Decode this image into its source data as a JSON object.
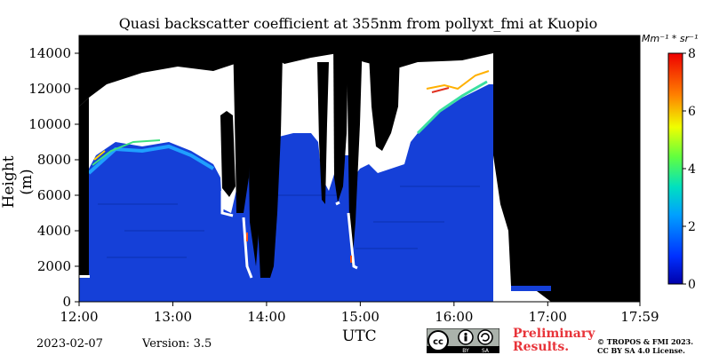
{
  "chart_data": {
    "type": "heatmap",
    "title": "Quasi backscatter coefficient at 355nm from pollyxt_fmi at Kuopio",
    "xlabel": "UTC",
    "ylabel": "Height (m)",
    "x_ticks": [
      "12:00",
      "13:00",
      "14:00",
      "15:00",
      "16:00",
      "17:00",
      "17:59"
    ],
    "xlim": [
      "12:00",
      "17:59"
    ],
    "y_ticks": [
      0,
      2000,
      4000,
      6000,
      8000,
      10000,
      12000,
      14000
    ],
    "ylim": [
      0,
      15000
    ],
    "colorbar": {
      "unit_label": "Mm⁻¹ * sr⁻¹",
      "ticks": [
        0,
        2,
        4,
        6,
        8
      ],
      "range": [
        0,
        8
      ],
      "colormap": "jet"
    },
    "colors": {
      "no_signal": "#000000",
      "saturated_cloud": "#ffffff",
      "background_aerosol": "#1540d8"
    }
  },
  "footer": {
    "date": "2023-02-07",
    "version": "Version: 3.5",
    "preliminary_line1": "Preliminary",
    "preliminary_line2": "Results.",
    "copyright_line1": "© TROPOS & FMI 2023.",
    "copyright_line2": "CC BY SA 4.0 License.",
    "license_badge": {
      "icons": [
        "cc-icon",
        "by-icon",
        "sa-icon"
      ],
      "labels": [
        "BY",
        "SA"
      ]
    }
  }
}
